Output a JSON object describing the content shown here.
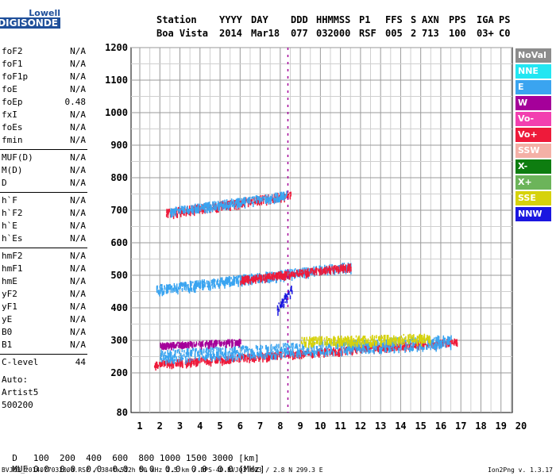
{
  "logo": {
    "line1": "Lowell",
    "line2": "DIGISONDE"
  },
  "header": {
    "columns": [
      {
        "label": "Station",
        "value": "Boa Vista"
      },
      {
        "label": "YYYY",
        "value": "2014"
      },
      {
        "label": "DAY",
        "value": "Mar18"
      },
      {
        "label": "DDD",
        "value": "077"
      },
      {
        "label": "HHMMSS",
        "value": "032000"
      },
      {
        "label": "P1",
        "value": "RSF"
      },
      {
        "label": "FFS",
        "value": "005"
      },
      {
        "label": "S",
        "value": "2"
      },
      {
        "label": "AXN",
        "value": "713"
      },
      {
        "label": "PPS",
        "value": "100"
      },
      {
        "label": "IGA",
        "value": "03+"
      },
      {
        "label": "PS",
        "value": "C0"
      }
    ]
  },
  "parameters": [
    {
      "name": "foF2",
      "value": "N/A"
    },
    {
      "name": "foF1",
      "value": "N/A"
    },
    {
      "name": "foF1p",
      "value": "N/A"
    },
    {
      "name": "foE",
      "value": "N/A"
    },
    {
      "name": "foEp",
      "value": "0.48"
    },
    {
      "name": "fxI",
      "value": "N/A"
    },
    {
      "name": "foEs",
      "value": "N/A"
    },
    {
      "name": "fmin",
      "value": "N/A"
    },
    {
      "name": "MUF(D)",
      "value": "N/A"
    },
    {
      "name": "M(D)",
      "value": "N/A"
    },
    {
      "name": "D",
      "value": "N/A"
    },
    {
      "name": "h`F",
      "value": "N/A"
    },
    {
      "name": "h`F2",
      "value": "N/A"
    },
    {
      "name": "h`E",
      "value": "N/A"
    },
    {
      "name": "h`Es",
      "value": "N/A"
    },
    {
      "name": "hmF2",
      "value": "N/A"
    },
    {
      "name": "hmF1",
      "value": "N/A"
    },
    {
      "name": "hmE",
      "value": "N/A"
    },
    {
      "name": "yF2",
      "value": "N/A"
    },
    {
      "name": "yF1",
      "value": "N/A"
    },
    {
      "name": "yE",
      "value": "N/A"
    },
    {
      "name": "B0",
      "value": "N/A"
    },
    {
      "name": "B1",
      "value": "N/A"
    },
    {
      "name": "C-level",
      "value": "44"
    }
  ],
  "auto": {
    "line1": "Auto:",
    "line2": "Artist5",
    "line3": "500200"
  },
  "legend": [
    {
      "label": "NoVal",
      "color": "#8c8c8c"
    },
    {
      "label": "NNE",
      "color": "#22e6f2"
    },
    {
      "label": "E",
      "color": "#3aa4f0"
    },
    {
      "label": "W",
      "color": "#a5009a"
    },
    {
      "label": "Vo-",
      "color": "#f23fb0"
    },
    {
      "label": "Vo+",
      "color": "#ee1a3a"
    },
    {
      "label": "SSW",
      "color": "#f4b0a6"
    },
    {
      "label": "X-",
      "color": "#0e7d10"
    },
    {
      "label": "X+",
      "color": "#6cb45a"
    },
    {
      "label": "SSE",
      "color": "#d6d20c"
    },
    {
      "label": "NNW",
      "color": "#1a16e0"
    }
  ],
  "bottom": {
    "row1_label": "D",
    "row1_values": "100  200  400  600  800 1000 1500 3000 [km]",
    "row2_label": "MUF",
    "row2_values": "0.0  0.0  0.0  0.0  0.0  0.0  0.0  0.0 [MHz]"
  },
  "footer": {
    "left": "BVJ03_2014077032000.RSF / 384fx512h 50 kHz 2.5 km / DPS-4D BVJ03 003 / 2.8 N 299.3 E",
    "right": "Ion2Png v. 1.3.17"
  },
  "chart_data": {
    "type": "scatter",
    "xlim": [
      1,
      20
    ],
    "ylim": [
      80,
      1200
    ],
    "xticks": [
      "1",
      "2",
      "3",
      "4",
      "5",
      "6",
      "7",
      "8",
      "9",
      "10",
      "11",
      "12",
      "13",
      "14",
      "15",
      "16",
      "17",
      "18",
      "19",
      "20"
    ],
    "yticks": [
      "80",
      "200",
      "300",
      "400",
      "500",
      "600",
      "700",
      "800",
      "900",
      "1000",
      "1100",
      "1200"
    ],
    "grid": true,
    "traces": [
      {
        "name": "F-layer O trace",
        "color": "#ee1a3a",
        "x_start": 1.7,
        "x_end": 16.8,
        "y_start": 230,
        "y_end": 300,
        "spread": 8
      },
      {
        "name": "F-layer E trace",
        "color": "#3aa4f0",
        "x_start": 2.0,
        "x_end": 16.5,
        "y_start": 255,
        "y_end": 300,
        "spread": 18
      },
      {
        "name": "F-layer W trace",
        "color": "#a5009a",
        "x_start": 2.0,
        "x_end": 6.0,
        "y_start": 288,
        "y_end": 300,
        "spread": 6
      },
      {
        "name": "F-layer SSE trace",
        "color": "#d6d20c",
        "x_start": 9.0,
        "x_end": 15.5,
        "y_start": 300,
        "y_end": 310,
        "spread": 12
      },
      {
        "name": "Second hop E trace",
        "color": "#3aa4f0",
        "x_start": 1.8,
        "x_end": 11.5,
        "y_start": 460,
        "y_end": 530,
        "spread": 12
      },
      {
        "name": "Second hop O trace",
        "color": "#ee1a3a",
        "x_start": 6.0,
        "x_end": 11.5,
        "y_start": 490,
        "y_end": 530,
        "spread": 8
      },
      {
        "name": "Third hop trace",
        "color": "#ee1a3a",
        "x_start": 2.3,
        "x_end": 8.5,
        "y_start": 695,
        "y_end": 750,
        "spread": 10
      },
      {
        "name": "Third hop E trace",
        "color": "#3aa4f0",
        "x_start": 2.5,
        "x_end": 8.3,
        "y_start": 700,
        "y_end": 750,
        "spread": 10
      },
      {
        "name": "NNW cluster",
        "color": "#1a16e0",
        "x_start": 7.8,
        "x_end": 8.6,
        "y_start": 400,
        "y_end": 460,
        "spread": 15
      }
    ],
    "vertical_streak": {
      "x": 8.5,
      "y_min": 80,
      "y_max": 1200,
      "color": "#a5009a"
    }
  }
}
